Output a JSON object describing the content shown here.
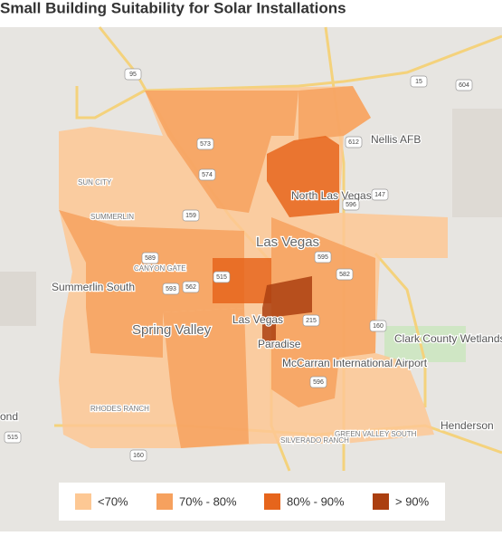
{
  "title": "Small Building Suitability for Solar Installations",
  "legend": [
    {
      "label": "<70%",
      "color": "#fdc894"
    },
    {
      "label": "70% - 80%",
      "color": "#f6a15e"
    },
    {
      "label": "80% - 90%",
      "color": "#e6651c"
    },
    {
      "label": "> 90%",
      "color": "#ab3f10"
    }
  ],
  "places": [
    "Las Vegas",
    "North Las Vegas",
    "Spring Valley",
    "Paradise",
    "Henderson",
    "Summerlin South",
    "SUN CITY",
    "SUMMERLIN",
    "McCarran International Airport",
    "Clark County Wetlands Park",
    "Nellis AFB",
    "CANYON GATE",
    "RHODES RANCH",
    "GREEN VALLEY SOUTH",
    "SILVERADO RANCH",
    "Las Vegas",
    "ond"
  ],
  "highways": [
    "95",
    "15",
    "604",
    "573",
    "574",
    "612",
    "147",
    "596",
    "159",
    "589",
    "515",
    "595",
    "582",
    "593",
    "562",
    "160",
    "215",
    "596",
    "515",
    "160"
  ]
}
